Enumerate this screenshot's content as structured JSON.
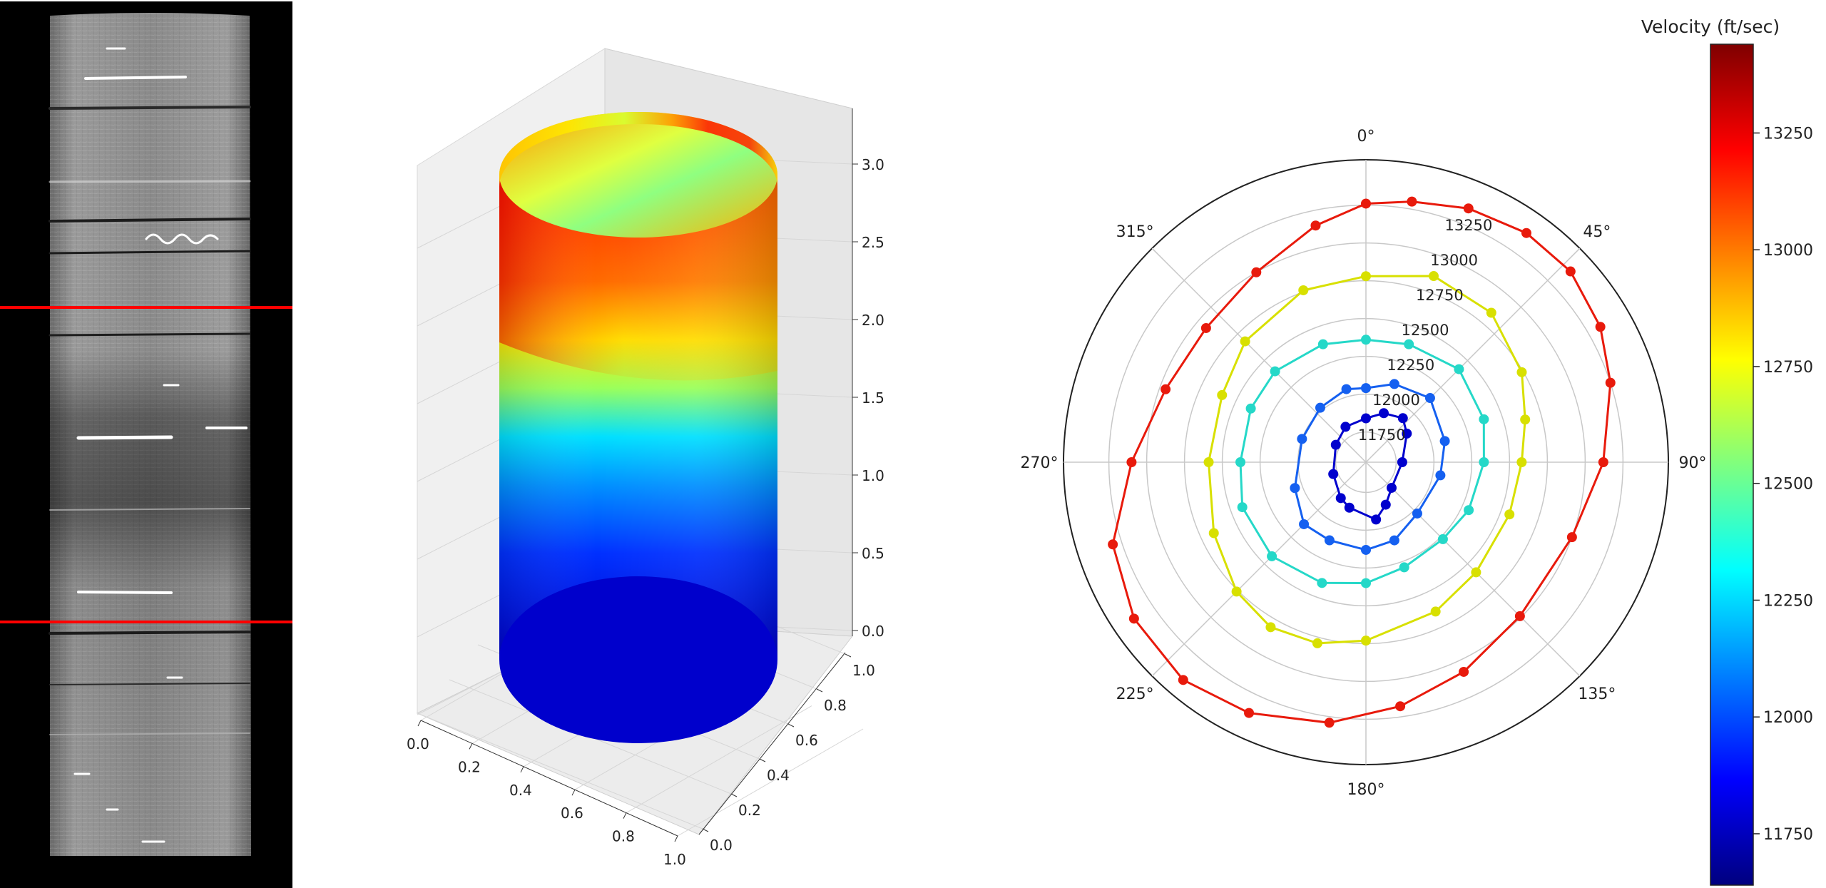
{
  "chart_data": [
    {
      "type": "image",
      "subject": "core CT scan (grayscale)",
      "marker_lines": {
        "count": 2,
        "color": "#ff0000"
      }
    },
    {
      "type": "surface3d",
      "shape": "cylinder",
      "colormap": "jet",
      "x_ticks": [
        "0.0",
        "0.2",
        "0.4",
        "0.6",
        "0.8",
        "1.0"
      ],
      "y_ticks": [
        "0.0",
        "0.2",
        "0.4",
        "0.6",
        "0.8",
        "1.0"
      ],
      "z_ticks": [
        "0.0",
        "0.5",
        "1.0",
        "1.5",
        "2.0",
        "2.5",
        "3.0"
      ],
      "xlim": [
        0,
        1
      ],
      "ylim": [
        0,
        1
      ],
      "zlim": [
        0,
        3
      ],
      "grid": true
    },
    {
      "type": "scatter",
      "coordinate_system": "polar",
      "theta_zero": "top",
      "theta_direction": "clockwise",
      "theta_ticks": [
        "0°",
        "45°",
        "90°",
        "135°",
        "180°",
        "225°",
        "270°",
        "315°"
      ],
      "r_tick_labels": [
        "11750",
        "12000",
        "12250",
        "12500",
        "12750",
        "13000",
        "13250"
      ],
      "rlim": [
        11550,
        13550
      ],
      "series": [
        {
          "color": "#0000cd",
          "points": [
            [
              0,
              11840
            ],
            [
              20,
              11895
            ],
            [
              40,
              11930
            ],
            [
              55,
              11880
            ],
            [
              90,
              11790
            ],
            [
              135,
              11790
            ],
            [
              155,
              11860
            ],
            [
              170,
              11935
            ],
            [
              200,
              11870
            ],
            [
              215,
              11840
            ],
            [
              250,
              11780
            ],
            [
              300,
              11780
            ],
            [
              330,
              11820
            ]
          ]
        },
        {
          "color": "#1560f0",
          "points": [
            [
              0,
              12040
            ],
            [
              20,
              12100
            ],
            [
              45,
              12150
            ],
            [
              75,
              12090
            ],
            [
              100,
              12050
            ],
            [
              135,
              12030
            ],
            [
              160,
              12100
            ],
            [
              180,
              12130
            ],
            [
              205,
              12120
            ],
            [
              225,
              12130
            ],
            [
              250,
              12050
            ],
            [
              290,
              12000
            ],
            [
              320,
              12020
            ],
            [
              345,
              12050
            ]
          ]
        },
        {
          "color": "#25d8c8",
          "points": [
            [
              0,
              12360
            ],
            [
              20,
              12380
            ],
            [
              45,
              12420
            ],
            [
              70,
              12380
            ],
            [
              90,
              12330
            ],
            [
              115,
              12300
            ],
            [
              135,
              12270
            ],
            [
              160,
              12290
            ],
            [
              180,
              12350
            ],
            [
              200,
              12400
            ],
            [
              225,
              12430
            ],
            [
              250,
              12420
            ],
            [
              270,
              12380
            ],
            [
              295,
              12390
            ],
            [
              315,
              12400
            ],
            [
              340,
              12380
            ]
          ]
        },
        {
          "color": "#d8e000",
          "points": [
            [
              0,
              12780
            ],
            [
              20,
              12860
            ],
            [
              40,
              12840
            ],
            [
              60,
              12740
            ],
            [
              75,
              12640
            ],
            [
              90,
              12580
            ],
            [
              110,
              12560
            ],
            [
              135,
              12580
            ],
            [
              155,
              12640
            ],
            [
              180,
              12730
            ],
            [
              195,
              12790
            ],
            [
              210,
              12810
            ],
            [
              225,
              12760
            ],
            [
              245,
              12660
            ],
            [
              270,
              12590
            ],
            [
              295,
              12600
            ],
            [
              315,
              12680
            ],
            [
              340,
              12760
            ]
          ]
        },
        {
          "color": "#e81a0c",
          "points": [
            [
              0,
              13260
            ],
            [
              10,
              13300
            ],
            [
              22,
              13360
            ],
            [
              35,
              13400
            ],
            [
              47,
              13400
            ],
            [
              60,
              13340
            ],
            [
              72,
              13250
            ],
            [
              90,
              13120
            ],
            [
              110,
              13000
            ],
            [
              135,
              12990
            ],
            [
              155,
              13080
            ],
            [
              172,
              13180
            ],
            [
              188,
              13290
            ],
            [
              205,
              13380
            ],
            [
              220,
              13430
            ],
            [
              236,
              13400
            ],
            [
              252,
              13310
            ],
            [
              270,
              13100
            ],
            [
              290,
              12960
            ],
            [
              310,
              12930
            ],
            [
              330,
              13000
            ],
            [
              348,
              13150
            ]
          ]
        }
      ]
    },
    {
      "type": "colorbar",
      "title": "Velocity (ft/sec)",
      "colormap": "jet",
      "ticks": [
        "11750",
        "12000",
        "12250",
        "12500",
        "12750",
        "13000",
        "13250"
      ],
      "range": [
        11640,
        13440
      ]
    }
  ]
}
